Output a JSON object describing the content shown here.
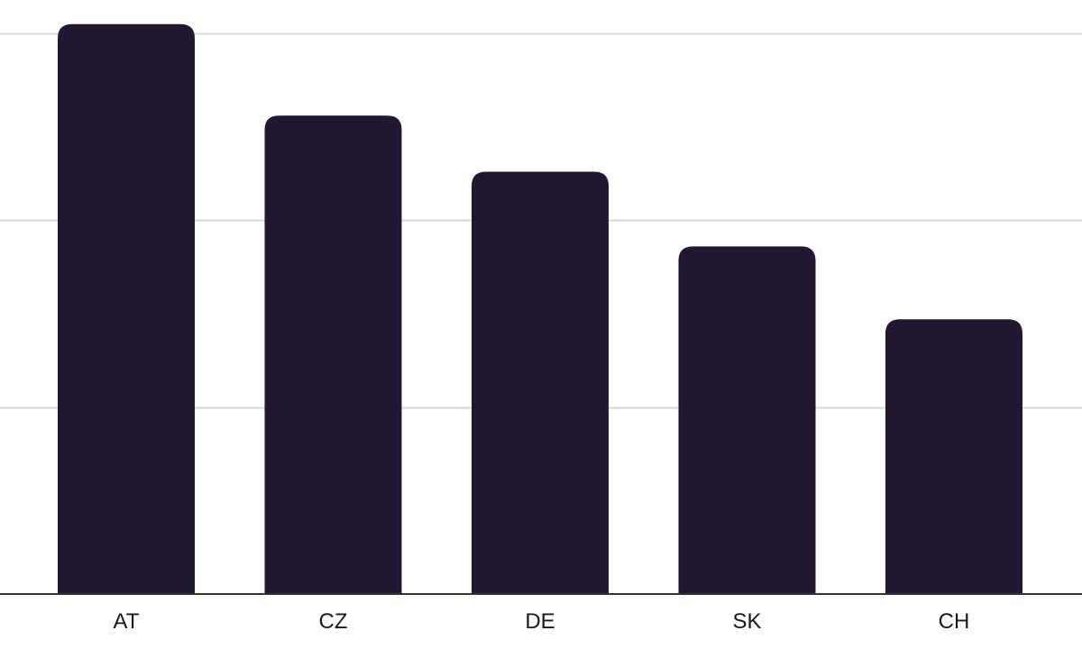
{
  "chart_data": {
    "type": "bar",
    "categories": [
      "AT",
      "CZ",
      "DE",
      "SK",
      "CH"
    ],
    "values": [
      30.5,
      25.6,
      22.6,
      18.6,
      14.7
    ],
    "ylim": [
      0,
      30
    ],
    "yticks": [
      10,
      20,
      30
    ],
    "grid": true,
    "legend": "none",
    "colors": {
      "bar": "#221731",
      "grid": "#d8d8d8",
      "axis": "#333333",
      "label": "#1a1a1a"
    }
  }
}
